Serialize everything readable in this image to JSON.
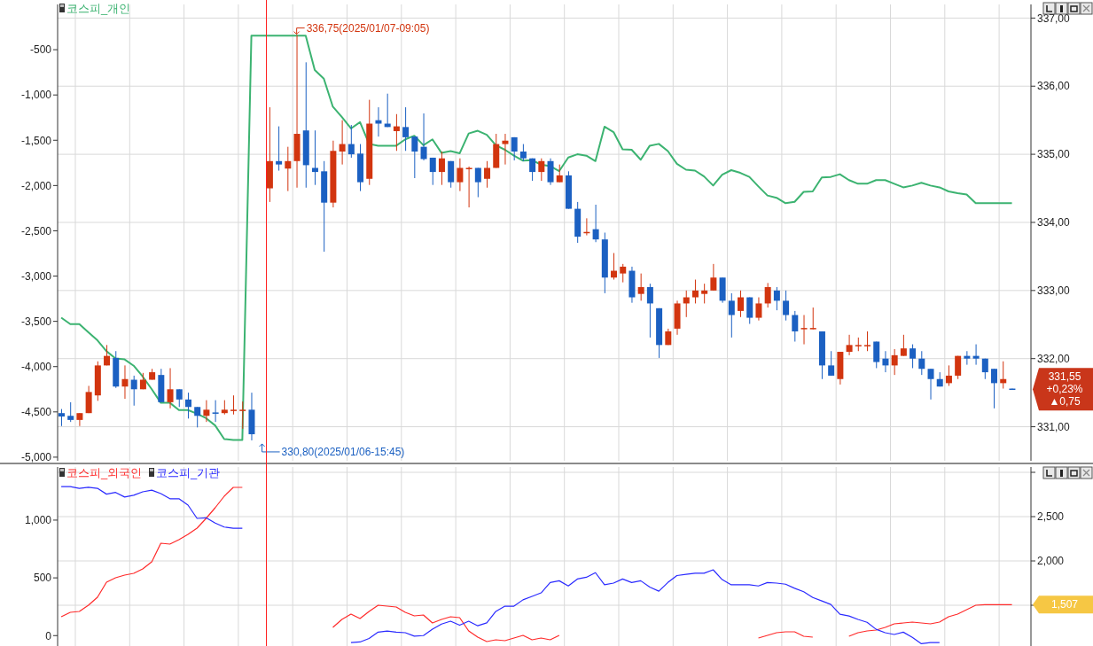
{
  "chart_data": [
    {
      "type": "candlestick",
      "categories": [
        null,
        null,
        null,
        null,
        null,
        null,
        null,
        null,
        null,
        null,
        null,
        null,
        null,
        null,
        null,
        null,
        null,
        null,
        null,
        null,
        null,
        null,
        null,
        null,
        null,
        null,
        null,
        null,
        null,
        null,
        null,
        null,
        null,
        null,
        null,
        null,
        null,
        null,
        null,
        null,
        null,
        null,
        null,
        null,
        null,
        null,
        null,
        null,
        null,
        null,
        null,
        null,
        null,
        null,
        null,
        null,
        null,
        null,
        null,
        null,
        null,
        null,
        null,
        null,
        null,
        null,
        null,
        null,
        null,
        null,
        null,
        null,
        null,
        null,
        null,
        null,
        null,
        null,
        null,
        null,
        null,
        null,
        null,
        null,
        null,
        null,
        null,
        null,
        null,
        null,
        null,
        null,
        null,
        null,
        null,
        null,
        null,
        null,
        null,
        null,
        null,
        null,
        null,
        null,
        null,
        null
      ],
      "ohlc": [
        [
          331.2,
          331.26,
          331.01,
          331.15
        ],
        [
          331.16,
          331.36,
          331.07,
          331.1
        ],
        [
          331.1,
          331.2,
          331.01,
          331.2
        ],
        [
          331.2,
          331.6,
          331.2,
          331.51
        ],
        [
          331.46,
          331.96,
          331.38,
          331.9
        ],
        [
          331.9,
          332.2,
          331.9,
          332.04
        ],
        [
          332.01,
          332.11,
          331.57,
          331.59
        ],
        [
          331.59,
          331.9,
          331.41,
          331.7
        ],
        [
          331.69,
          331.75,
          331.31,
          331.55
        ],
        [
          331.55,
          331.79,
          331.55,
          331.69
        ],
        [
          331.69,
          331.85,
          331.69,
          331.8
        ],
        [
          331.76,
          331.85,
          331.36,
          331.36
        ],
        [
          331.36,
          331.86,
          331.27,
          331.55
        ],
        [
          331.55,
          331.55,
          331.29,
          331.4
        ],
        [
          331.4,
          331.5,
          331.12,
          331.29
        ],
        [
          331.29,
          331.29,
          330.99,
          331.16
        ],
        [
          331.16,
          331.39,
          331.07,
          331.25
        ],
        [
          331.21,
          331.39,
          331.07,
          331.2
        ],
        [
          331.2,
          331.39,
          331.18,
          331.25
        ],
        [
          331.24,
          331.46,
          331.18,
          331.25
        ],
        [
          331.24,
          331.37,
          330.97,
          331.25
        ],
        [
          331.25,
          331.5,
          330.8,
          330.89
        ],
        null,
        [
          334.5,
          335.69,
          334.3,
          334.9
        ],
        [
          334.9,
          335.41,
          334.76,
          334.85
        ],
        [
          334.79,
          335.11,
          334.46,
          334.9
        ],
        [
          334.9,
          336.75,
          334.51,
          335.3
        ],
        [
          335.35,
          336.35,
          334.51,
          334.84
        ],
        [
          334.8,
          335.35,
          334.55,
          334.74
        ],
        [
          334.75,
          334.9,
          333.57,
          334.29
        ],
        [
          334.29,
          335.2,
          334.22,
          335.05
        ],
        [
          335.04,
          335.5,
          334.85,
          335.15
        ],
        [
          335.15,
          335.43,
          334.95,
          335.0
        ],
        [
          335.01,
          335.15,
          334.46,
          334.59
        ],
        [
          334.64,
          335.8,
          334.55,
          335.45
        ],
        [
          335.5,
          335.69,
          335.26,
          335.45
        ],
        [
          335.45,
          335.89,
          335.4,
          335.4
        ],
        [
          335.34,
          335.59,
          335.05,
          335.41
        ],
        [
          335.4,
          335.69,
          335.05,
          335.25
        ],
        [
          335.26,
          335.26,
          334.65,
          335.04
        ],
        [
          335.11,
          335.6,
          334.91,
          334.93
        ],
        [
          334.95,
          334.95,
          334.55,
          334.74
        ],
        [
          334.74,
          335.04,
          334.55,
          334.94
        ],
        [
          334.9,
          334.9,
          334.51,
          334.59
        ],
        [
          334.59,
          334.94,
          334.46,
          334.8
        ],
        [
          334.79,
          334.82,
          334.22,
          334.8
        ],
        [
          334.8,
          334.8,
          334.37,
          334.59
        ],
        [
          334.64,
          334.9,
          334.51,
          334.8
        ],
        [
          334.8,
          335.3,
          334.8,
          335.15
        ],
        [
          335.15,
          335.3,
          334.85,
          335.2
        ],
        [
          335.25,
          335.25,
          334.91,
          335.04
        ],
        [
          335.04,
          335.15,
          334.9,
          334.94
        ],
        [
          334.94,
          334.94,
          334.61,
          334.74
        ],
        [
          334.74,
          334.94,
          334.61,
          334.9
        ],
        [
          334.9,
          334.94,
          334.55,
          334.59
        ],
        [
          334.59,
          334.85,
          334.59,
          334.69
        ],
        [
          334.69,
          334.75,
          334.2,
          334.2
        ],
        [
          334.2,
          334.3,
          333.7,
          333.79
        ],
        [
          333.85,
          334.06,
          333.81,
          333.86
        ],
        [
          333.9,
          334.26,
          333.71,
          333.75
        ],
        [
          333.75,
          333.85,
          332.96,
          333.19
        ],
        [
          333.19,
          333.55,
          333.16,
          333.29
        ],
        [
          333.25,
          333.39,
          333.12,
          333.35
        ],
        [
          333.29,
          333.35,
          332.82,
          332.9
        ],
        [
          332.95,
          333.25,
          332.85,
          333.05
        ],
        [
          333.05,
          333.1,
          332.31,
          332.81
        ],
        [
          332.74,
          332.74,
          332.01,
          332.2
        ],
        [
          332.2,
          332.44,
          332.2,
          332.4
        ],
        [
          332.44,
          332.85,
          332.35,
          332.81
        ],
        [
          332.81,
          333.0,
          332.61,
          332.9
        ],
        [
          332.9,
          333.16,
          332.81,
          333.0
        ],
        [
          332.95,
          333.1,
          332.81,
          333.0
        ],
        [
          333.0,
          333.39,
          333.0,
          333.19
        ],
        [
          333.19,
          333.19,
          332.82,
          332.85
        ],
        [
          332.85,
          332.96,
          332.31,
          332.64
        ],
        [
          332.7,
          333.0,
          332.61,
          332.9
        ],
        [
          332.9,
          332.9,
          332.51,
          332.6
        ],
        [
          332.6,
          332.9,
          332.56,
          332.81
        ],
        [
          332.81,
          333.11,
          332.75,
          333.05
        ],
        [
          333.0,
          333.05,
          332.71,
          332.85
        ],
        [
          332.85,
          333.0,
          332.56,
          332.64
        ],
        [
          332.64,
          332.7,
          332.25,
          332.4
        ],
        [
          332.44,
          332.64,
          332.21,
          332.45
        ],
        [
          332.44,
          332.75,
          332.43,
          332.45
        ],
        [
          332.4,
          332.4,
          331.7,
          331.9
        ],
        [
          331.9,
          332.11,
          331.75,
          331.75
        ],
        [
          331.7,
          332.1,
          331.62,
          332.1
        ],
        [
          332.1,
          332.35,
          332.05,
          332.2
        ],
        [
          332.19,
          332.31,
          332.11,
          332.2
        ],
        [
          332.19,
          332.4,
          332.11,
          332.2
        ],
        [
          332.25,
          332.25,
          331.86,
          331.95
        ],
        [
          332.0,
          332.11,
          331.8,
          331.9
        ],
        [
          331.9,
          332.14,
          331.76,
          332.05
        ],
        [
          332.04,
          332.35,
          332.04,
          332.15
        ],
        [
          332.15,
          332.21,
          331.86,
          332.0
        ],
        [
          332.0,
          332.11,
          331.76,
          331.85
        ],
        [
          331.85,
          331.85,
          331.4,
          331.7
        ],
        [
          331.7,
          331.8,
          331.59,
          331.59
        ],
        [
          331.64,
          331.9,
          331.6,
          331.75
        ],
        [
          331.75,
          332.04,
          331.7,
          332.04
        ],
        [
          332.04,
          332.11,
          331.91,
          332.0
        ],
        [
          332.04,
          332.21,
          331.91,
          332.0
        ],
        [
          332.0,
          332.0,
          331.7,
          331.8
        ],
        [
          331.85,
          331.85,
          331.27,
          331.64
        ],
        [
          331.64,
          331.96,
          331.56,
          331.7
        ],
        [
          331.56,
          331.56,
          331.55,
          331.55
        ]
      ],
      "colors": [
        "#1b60c2",
        "#1b60c2",
        "#d2350f",
        "#d2350f",
        "#d2350f",
        "#d2350f",
        "#1b60c2",
        "#d2350f",
        "#1b60c2",
        "#d2350f",
        "#d2350f",
        "#1b60c2",
        "#d2350f",
        "#1b60c2",
        "#1b60c2",
        "#1b60c2",
        "#d2350f",
        "#1b60c2",
        "#d2350f",
        "#d2350f",
        "#d2350f",
        "#1b60c2",
        null,
        "#d2350f",
        "#1b60c2",
        "#d2350f",
        "#d2350f",
        "#1b60c2",
        "#1b60c2",
        "#1b60c2",
        "#d2350f",
        "#d2350f",
        "#1b60c2",
        "#1b60c2",
        "#d2350f",
        "#1b60c2",
        "#1b60c2",
        "#d2350f",
        "#1b60c2",
        "#1b60c2",
        "#1b60c2",
        "#1b60c2",
        "#d2350f",
        "#1b60c2",
        "#d2350f",
        "#d2350f",
        "#1b60c2",
        "#d2350f",
        "#d2350f",
        "#d2350f",
        "#1b60c2",
        "#1b60c2",
        "#1b60c2",
        "#d2350f",
        "#1b60c2",
        "#d2350f",
        "#1b60c2",
        "#1b60c2",
        "#d2350f",
        "#1b60c2",
        "#1b60c2",
        "#d2350f",
        "#d2350f",
        "#1b60c2",
        "#d2350f",
        "#1b60c2",
        "#1b60c2",
        "#d2350f",
        "#d2350f",
        "#d2350f",
        "#d2350f",
        "#d2350f",
        "#d2350f",
        "#1b60c2",
        "#1b60c2",
        "#d2350f",
        "#1b60c2",
        "#d2350f",
        "#d2350f",
        "#1b60c2",
        "#1b60c2",
        "#1b60c2",
        "#d2350f",
        "#d2350f",
        "#1b60c2",
        "#1b60c2",
        "#d2350f",
        "#d2350f",
        "#d2350f",
        "#d2350f",
        "#1b60c2",
        "#1b60c2",
        "#d2350f",
        "#d2350f",
        "#1b60c2",
        "#1b60c2",
        "#1b60c2",
        "#1b60c2",
        "#d2350f",
        "#d2350f",
        "#1b60c2",
        "#1b60c2",
        "#1b60c2",
        "#1b60c2",
        "#d2350f",
        "#1b60c2"
      ],
      "series": [
        {
          "name": "코스피_개인",
          "type": "line",
          "axis": "y2",
          "color": "#3cb371",
          "values": [
            -3460,
            -3530,
            -3530,
            -3620,
            -3710,
            -3830,
            -3910,
            -3920,
            -3990,
            -4110,
            -4250,
            -4400,
            -4400,
            -4480,
            -4480,
            -4520,
            -4570,
            -4650,
            -4800,
            -4810,
            -4810,
            -345,
            -345,
            -345,
            -345,
            -345,
            -345,
            -345,
            -725,
            -820,
            -1130,
            -1245,
            -1370,
            -1300,
            -1540,
            -1560,
            -1560,
            -1560,
            -1490,
            -1450,
            -1555,
            -1490,
            -1640,
            -1620,
            -1645,
            -1425,
            -1395,
            -1440,
            -1555,
            -1605,
            -1670,
            -1725,
            -1720,
            -1770,
            -1785,
            -1840,
            -1690,
            -1655,
            -1670,
            -1730,
            -1350,
            -1410,
            -1600,
            -1605,
            -1715,
            -1560,
            -1540,
            -1620,
            -1760,
            -1825,
            -1835,
            -1900,
            -2000,
            -1880,
            -1830,
            -1860,
            -1905,
            -2010,
            -2110,
            -2135,
            -2195,
            -2180,
            -2070,
            -2065,
            -1910,
            -1905,
            -1875,
            -1940,
            -1980,
            -1980,
            -1940,
            -1940,
            -1980,
            -2020,
            -2000,
            -1970,
            -2000,
            -2020,
            -2065,
            -2085,
            -2100,
            -2195,
            -2195,
            -2195,
            -2195,
            -2195
          ]
        }
      ],
      "ylim": [
        330.5,
        337.2
      ],
      "yticks": [
        {
          "value": 331,
          "label": "331,00"
        },
        {
          "value": 332,
          "label": "332,00"
        },
        {
          "value": 333,
          "label": "333,00"
        },
        {
          "value": 334,
          "label": "334,00"
        },
        {
          "value": 335,
          "label": "335,00"
        },
        {
          "value": 336,
          "label": "336,00"
        },
        {
          "value": 337,
          "label": "337,00"
        }
      ],
      "y2lim": [
        -5040,
        0
      ],
      "y2ticks": [
        {
          "value": -5000,
          "label": "-5,000"
        },
        {
          "value": -4500,
          "label": "-4,500"
        },
        {
          "value": -4000,
          "label": "-4,000"
        },
        {
          "value": -3500,
          "label": "-3,500"
        },
        {
          "value": -3000,
          "label": "-3,000"
        },
        {
          "value": -2500,
          "label": "-2,500"
        },
        {
          "value": -2000,
          "label": "-2,000"
        },
        {
          "value": -1500,
          "label": "-1,500"
        },
        {
          "value": -1000,
          "label": "-1,000"
        },
        -500
      ],
      "grid": true,
      "legend": "top left",
      "tick_labels": "y",
      "annotations": [
        "336,75(2025/01/07-09:05)",
        "330,80(2025/01/06-15:45)",
        "331,55",
        "+0,23%",
        "▲0,75"
      ]
    },
    {
      "type": "line",
      "categories": [
        null,
        null,
        null,
        null,
        null,
        null,
        null,
        null,
        null,
        null,
        null,
        null,
        null,
        null,
        null,
        null,
        null,
        null,
        null,
        null,
        null,
        null,
        null,
        null,
        null,
        null,
        null,
        null,
        null,
        null,
        null,
        null,
        null,
        null,
        null,
        null,
        null,
        null,
        null,
        null,
        null,
        null,
        null,
        null,
        null,
        null,
        null,
        null,
        null,
        null,
        null,
        null,
        null,
        null,
        null,
        null,
        null,
        null,
        null,
        null,
        null,
        null,
        null,
        null,
        null,
        null,
        null,
        null,
        null,
        null,
        null,
        null,
        null,
        null,
        null,
        null,
        null,
        null,
        null,
        null,
        null,
        null,
        null,
        null,
        null,
        null,
        null,
        null,
        null,
        null,
        null,
        null,
        null,
        null,
        null,
        null,
        null,
        null,
        null,
        null,
        null,
        null,
        null,
        null,
        null,
        null
      ],
      "series": [
        {
          "name": "코스피_외국인",
          "color": "#ff2a2a",
          "values": [
            1370,
            1420,
            1430,
            1500,
            1590,
            1760,
            1810,
            1840,
            1860,
            1910,
            1990,
            2200,
            2190,
            2240,
            2300,
            2370,
            2480,
            2600,
            2730,
            2830,
            2830,
            null,
            null,
            null,
            null,
            null,
            null,
            null,
            null,
            null,
            1250,
            1340,
            1400,
            1350,
            1430,
            1500,
            1490,
            1480,
            1420,
            1380,
            1390,
            1300,
            1340,
            1370,
            1360,
            1210,
            1140,
            1090,
            1110,
            1100,
            1130,
            1160,
            1110,
            1130,
            1110,
            1160,
            null,
            null,
            null,
            null,
            null,
            null,
            null,
            null,
            null,
            null,
            null,
            null,
            null,
            null,
            null,
            null,
            null,
            null,
            null,
            null,
            null,
            1130,
            1160,
            1190,
            1200,
            1200,
            1150,
            1140,
            null,
            null,
            null,
            1150,
            1190,
            1210,
            1220,
            1250,
            1290,
            1300,
            1310,
            1300,
            1290,
            1310,
            1370,
            1400,
            1450,
            1500,
            1507,
            1507,
            1507,
            1507
          ]
        },
        {
          "name": "코스피_기관",
          "axis": "y2",
          "color": "#2a2aff",
          "values": [
            1290,
            1290,
            1275,
            1285,
            1275,
            1225,
            1240,
            1200,
            1215,
            1245,
            1260,
            1230,
            1185,
            1185,
            1130,
            1015,
            1020,
            975,
            940,
            930,
            930,
            null,
            null,
            null,
            null,
            null,
            null,
            null,
            null,
            null,
            null,
            null,
            -60,
            -55,
            -25,
            30,
            40,
            30,
            25,
            -5,
            0,
            55,
            100,
            125,
            90,
            125,
            85,
            110,
            210,
            255,
            255,
            310,
            340,
            370,
            460,
            475,
            430,
            490,
            505,
            545,
            440,
            455,
            490,
            460,
            475,
            420,
            385,
            460,
            520,
            530,
            540,
            540,
            570,
            485,
            440,
            440,
            440,
            430,
            460,
            455,
            445,
            410,
            380,
            330,
            300,
            270,
            185,
            170,
            140,
            115,
            55,
            25,
            10,
            30,
            -15,
            -70,
            -60,
            -60,
            null,
            null,
            null,
            null,
            null,
            null,
            null,
            null
          ]
        }
      ],
      "ylim": [
        1040,
        3060
      ],
      "yticks": [
        {
          "value": 1500,
          "label": null
        },
        {
          "value": 2000,
          "label": "2,000"
        },
        {
          "value": 2500,
          "label": "2,500"
        },
        {
          "value": 3000,
          "label": null
        }
      ],
      "y2lim": [
        -90,
        1460
      ],
      "y2ticks": [
        0,
        500,
        {
          "value": 1000,
          "label": "1,000"
        }
      ],
      "grid": true,
      "legend": "top left",
      "tick_labels": "y",
      "annotations": [
        "1,507"
      ]
    }
  ]
}
